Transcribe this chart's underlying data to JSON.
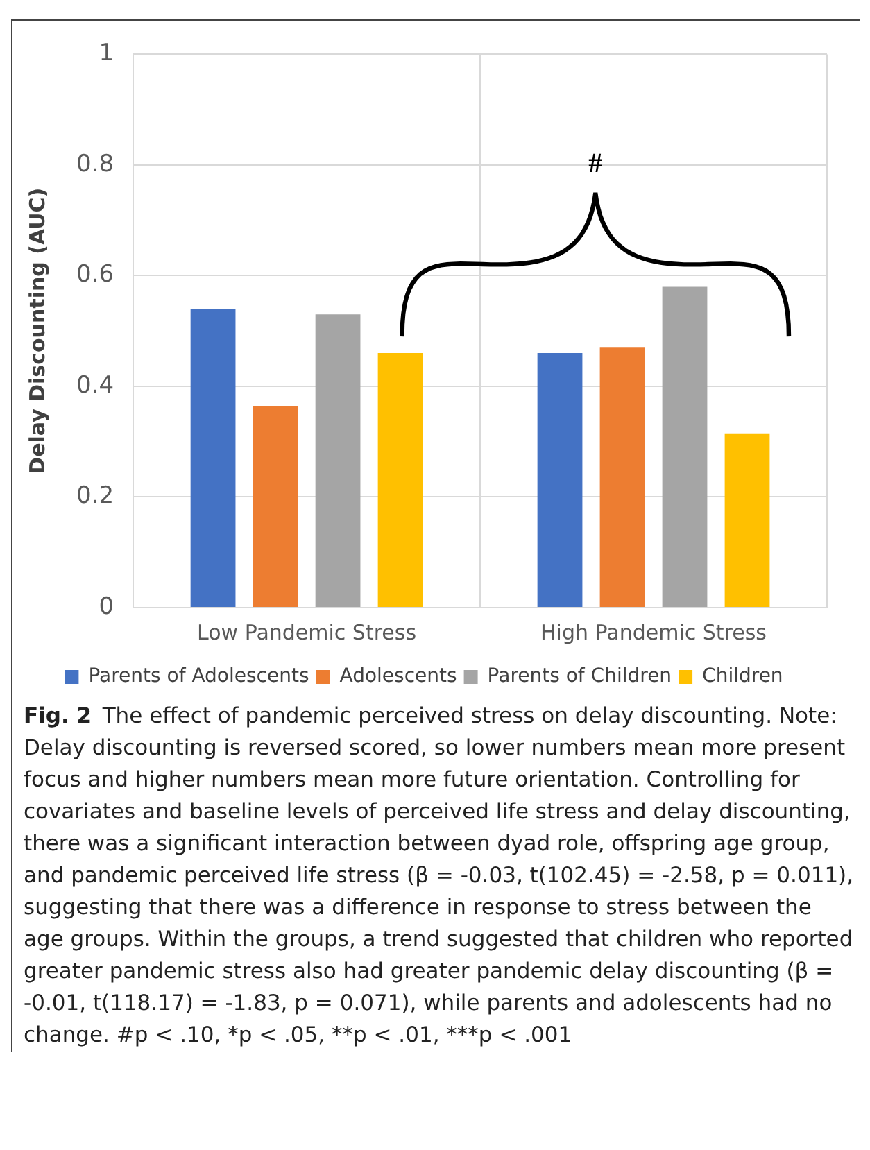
{
  "chart_data": {
    "type": "bar",
    "ylabel": "Delay Discounting (AUC)",
    "categories": [
      "Low Pandemic Stress",
      "High Pandemic Stress"
    ],
    "series": [
      {
        "name": "Parents of Adolescents",
        "color": "#4472c4",
        "values": [
          0.54,
          0.46
        ]
      },
      {
        "name": "Adolescents",
        "color": "#ed7d31",
        "values": [
          0.365,
          0.47
        ]
      },
      {
        "name": "Parents of Children",
        "color": "#a5a5a5",
        "values": [
          0.53,
          0.58
        ]
      },
      {
        "name": "Children",
        "color": "#ffc000",
        "values": [
          0.46,
          0.315
        ]
      }
    ],
    "ylim": [
      0,
      1
    ],
    "yticks": [
      0,
      0.2,
      0.4,
      0.6,
      0.8,
      1
    ],
    "grid": true,
    "legend": "bottom",
    "annotations": [
      "#",
      "Fig. 2  The effect of pandemic perceived stress on delay discounting. Note: Delay discounting is reversed scored, so lower numbers mean more present focus and higher numbers mean more future orientation. Controlling for covariates and baseline levels of perceived life stress and delay discounting, there was a significant interaction between dyad role, offspring age group, and pandemic perceived life stress (β = -0.03, t(102.45) = -2.58, p = 0.011), suggesting that there was a difference in response to stress between the age groups. Within the groups, a trend suggested that children who reported greater pandemic stress also had greater pandemic delay discounting (β = -0.01, t(118.17) = -1.83, p = 0.071), while parents and adolescents had no change. #p < .10, *p < .05, **p < .01, ***p < .001"
    ]
  }
}
